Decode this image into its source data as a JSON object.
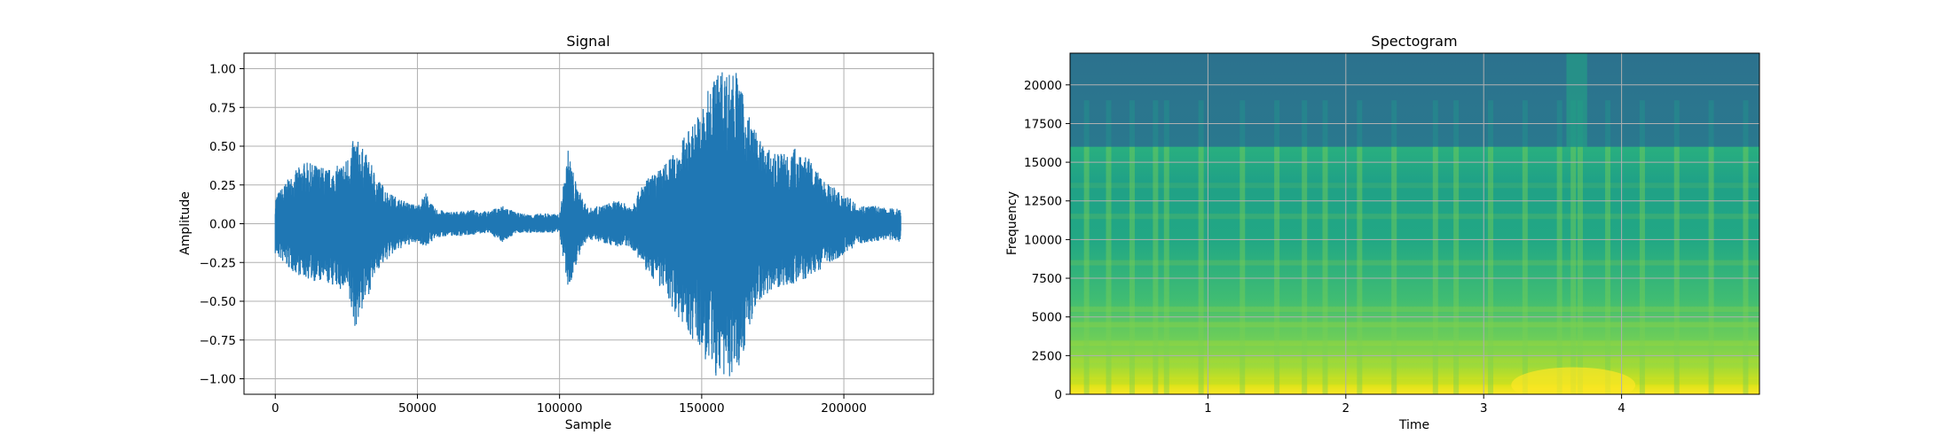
{
  "chart_data": [
    {
      "type": "line",
      "title": "Signal",
      "xlabel": "Sample",
      "ylabel": "Amplitude",
      "xlim": [
        -11000,
        231500
      ],
      "ylim": [
        -1.1,
        1.1
      ],
      "xticks": [
        0,
        50000,
        100000,
        150000,
        200000
      ],
      "yticks": [
        -1.0,
        -0.75,
        -0.5,
        -0.25,
        0.0,
        0.25,
        0.5,
        0.75,
        1.0
      ],
      "xtick_labels": [
        "0",
        "50000",
        "100000",
        "150000",
        "200000"
      ],
      "ytick_labels": [
        "−1.00",
        "−0.75",
        "−0.50",
        "−0.25",
        "0.00",
        "0.25",
        "0.50",
        "0.75",
        "1.00"
      ],
      "grid": true,
      "color": "#1f77b4",
      "series": [
        {
          "x": [
            0,
            5000,
            10000,
            15000,
            20000,
            25000,
            28000,
            32000,
            36000,
            40000,
            45000,
            50000,
            53000,
            56000,
            60000,
            65000,
            70000,
            75000,
            80000,
            85000,
            90000,
            95000,
            100000,
            103000,
            106000,
            110000,
            115000,
            120000,
            125000,
            130000,
            135000,
            140000,
            145000,
            150000,
            155000,
            158000,
            162000,
            165000,
            170000,
            175000,
            180000,
            185000,
            190000,
            195000,
            200000,
            205000,
            210000,
            215000,
            220000
          ],
          "upper": [
            0.18,
            0.3,
            0.4,
            0.38,
            0.35,
            0.42,
            0.57,
            0.45,
            0.3,
            0.2,
            0.15,
            0.12,
            0.2,
            0.1,
            0.08,
            0.08,
            0.09,
            0.08,
            0.12,
            0.07,
            0.06,
            0.07,
            0.06,
            0.48,
            0.25,
            0.1,
            0.12,
            0.15,
            0.12,
            0.28,
            0.35,
            0.45,
            0.6,
            0.75,
            1.0,
            1.0,
            1.0,
            0.8,
            0.55,
            0.45,
            0.48,
            0.5,
            0.35,
            0.25,
            0.2,
            0.12,
            0.12,
            0.1,
            0.1
          ],
          "lower": [
            -0.2,
            -0.3,
            -0.35,
            -0.38,
            -0.4,
            -0.45,
            -0.68,
            -0.5,
            -0.3,
            -0.22,
            -0.15,
            -0.12,
            -0.15,
            -0.1,
            -0.08,
            -0.08,
            -0.07,
            -0.06,
            -0.12,
            -0.06,
            -0.06,
            -0.06,
            -0.06,
            -0.45,
            -0.25,
            -0.1,
            -0.12,
            -0.15,
            -0.15,
            -0.3,
            -0.4,
            -0.55,
            -0.7,
            -0.85,
            -1.0,
            -1.0,
            -1.0,
            -0.8,
            -0.5,
            -0.42,
            -0.4,
            -0.38,
            -0.32,
            -0.25,
            -0.2,
            -0.13,
            -0.12,
            -0.1,
            -0.12
          ]
        }
      ]
    },
    {
      "type": "heatmap",
      "title": "Spectogram",
      "xlabel": "Time",
      "ylabel": "Frequency",
      "xlim": [
        0.0,
        5.0
      ],
      "ylim": [
        0,
        22050
      ],
      "xticks": [
        1,
        2,
        3,
        4
      ],
      "yticks": [
        0,
        2500,
        5000,
        7500,
        10000,
        12500,
        15000,
        17500,
        20000
      ],
      "xtick_labels": [
        "1",
        "2",
        "3",
        "4"
      ],
      "ytick_labels": [
        "0",
        "2500",
        "5000",
        "7500",
        "10000",
        "12500",
        "15000",
        "17500",
        "20000"
      ],
      "grid": true,
      "colormap": "viridis",
      "cutoff_frequency": 16000,
      "bright_columns_time": [
        0.12,
        0.28,
        0.45,
        0.62,
        0.7,
        0.95,
        1.25,
        1.5,
        1.7,
        1.85,
        2.1,
        2.35,
        2.65,
        2.8,
        3.05,
        3.3,
        3.55,
        3.65,
        3.7,
        3.9,
        4.15,
        4.4,
        4.65,
        4.9
      ],
      "bright_bands_frequency": [
        800,
        1500,
        2200,
        3300,
        4500,
        5500,
        8500,
        11500,
        13500
      ]
    }
  ]
}
